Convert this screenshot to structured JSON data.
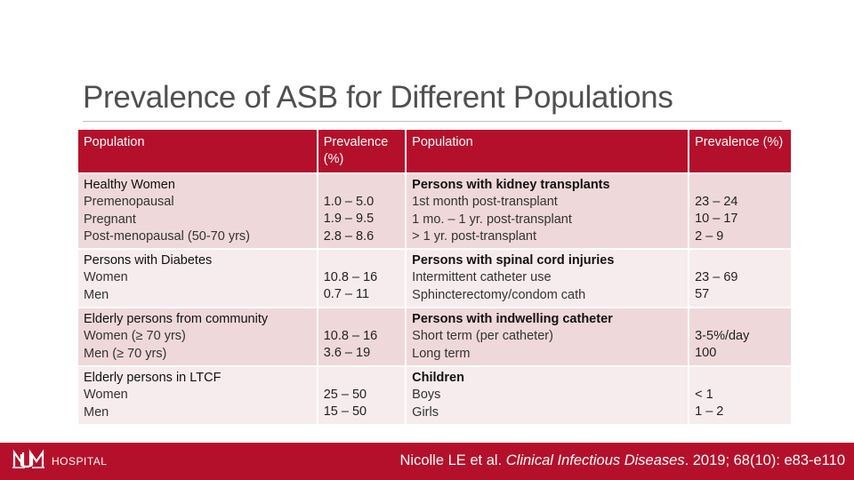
{
  "title": "Prevalence of ASB for Different Populations",
  "table": {
    "headers": [
      "Population",
      "Prevalence (%)",
      "Population",
      "Prevalence (%)"
    ],
    "rows": [
      {
        "left_group": "Healthy Women",
        "left_items": [
          "Premenopausal",
          "Pregnant",
          "Post-menopausal (50-70 yrs)"
        ],
        "left_values": [
          "1.0 – 5.0",
          "1.9 – 9.5",
          "2.8 – 8.6"
        ],
        "right_group": "Persons with kidney transplants",
        "right_items": [
          "1st month post-transplant",
          "1 mo. – 1 yr. post-transplant",
          "> 1 yr. post-transplant"
        ],
        "right_values": [
          "23 – 24",
          "10 – 17",
          "2 – 9"
        ]
      },
      {
        "left_group": "Persons with Diabetes",
        "left_items": [
          "Women",
          "Men"
        ],
        "left_values": [
          "10.8 – 16",
          "0.7 – 11"
        ],
        "right_group": "Persons with spinal cord injuries",
        "right_items": [
          "Intermittent catheter use",
          "Sphincterectomy/condom cath"
        ],
        "right_values": [
          "23 – 69",
          "57"
        ]
      },
      {
        "left_group": "Elderly persons from community",
        "left_items": [
          "Women (≥ 70 yrs)",
          "Men (≥ 70 yrs)"
        ],
        "left_values": [
          "10.8 – 16",
          "3.6 – 19"
        ],
        "right_group": "Persons with indwelling catheter",
        "right_items": [
          "Short term (per catheter)",
          "Long term"
        ],
        "right_values": [
          "3-5%/day",
          "100"
        ]
      },
      {
        "left_group": "Elderly persons in LTCF",
        "left_items": [
          "Women",
          "Men"
        ],
        "left_values": [
          "25 – 50",
          "15 – 50"
        ],
        "right_group": "Children",
        "right_items": [
          "Boys",
          "Girls"
        ],
        "right_values": [
          "< 1",
          "1 – 2"
        ]
      }
    ]
  },
  "footer": {
    "logo_text": "HOSPITAL",
    "citation_authors": "Nicolle LE et al. ",
    "citation_journal": "Clinical Infectious Diseases",
    "citation_rest": ". 2019; 68(10): e83-e110"
  },
  "colors": {
    "header": "#b5102b",
    "row_dark": "#efd8da",
    "row_light": "#f7eced",
    "footer": "#b5102b"
  },
  "icons": {
    "footer_logo": "unm-logo-icon"
  }
}
